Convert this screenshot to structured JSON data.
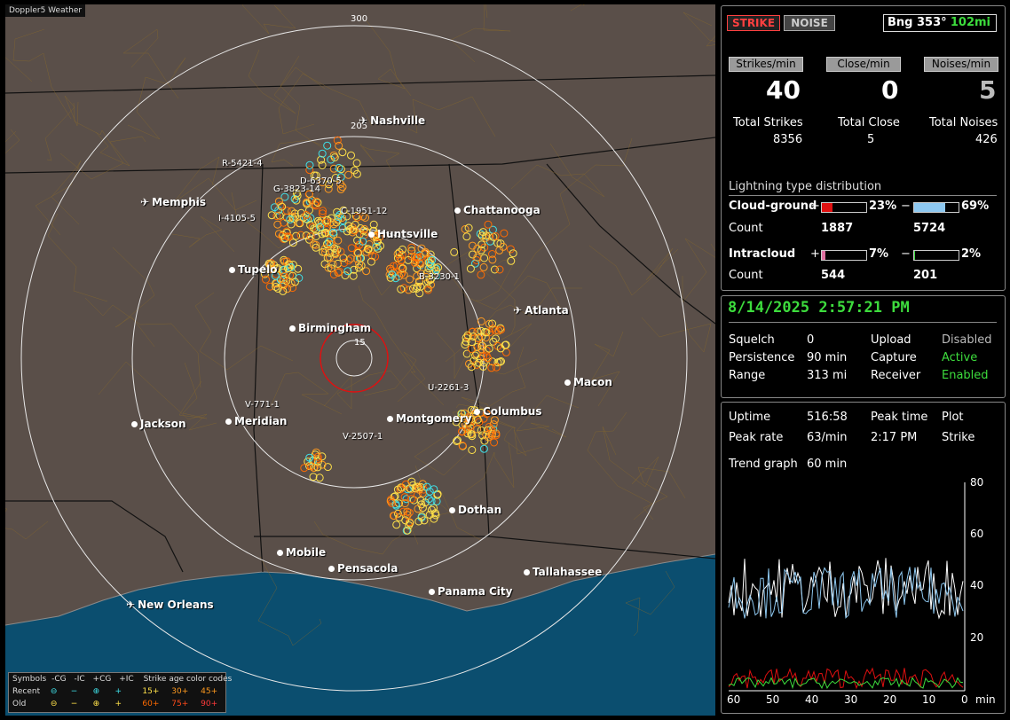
{
  "app_title": "Doppler5 Weather",
  "cities": [
    {
      "name": "Nashville",
      "icon": "plane"
    },
    {
      "name": "Memphis",
      "icon": "plane"
    },
    {
      "name": "Chattanooga",
      "icon": "dot"
    },
    {
      "name": "Huntsville",
      "icon": "dot"
    },
    {
      "name": "Tupelo",
      "icon": "dot"
    },
    {
      "name": "Atlanta",
      "icon": "plane"
    },
    {
      "name": "Birmingham",
      "icon": "dot"
    },
    {
      "name": "Macon",
      "icon": "dot"
    },
    {
      "name": "Jackson",
      "icon": "dot"
    },
    {
      "name": "Meridian",
      "icon": "dot"
    },
    {
      "name": "Montgomery",
      "icon": "dot"
    },
    {
      "name": "Columbus",
      "icon": "dot"
    },
    {
      "name": "Dothan",
      "icon": "dot"
    },
    {
      "name": "Mobile",
      "icon": "dot"
    },
    {
      "name": "Pensacola",
      "icon": "dot"
    },
    {
      "name": "Tallahassee",
      "icon": "dot"
    },
    {
      "name": "Panama City",
      "icon": "dot"
    },
    {
      "name": "New Orleans",
      "icon": "plane"
    }
  ],
  "cells": [
    "R-5421-4",
    "D-6370-5",
    "G-3823-14",
    "I-4105-5",
    "C-1951-12",
    "B-3230-1",
    "U-2261-3",
    "V-771-1",
    "V-2507-1"
  ],
  "range_rings": [
    "300",
    "205",
    "15"
  ],
  "legend": {
    "header": [
      "Symbols",
      "-CG",
      "-IC",
      "+CG",
      "+IC",
      "Strike age color codes"
    ],
    "recent_label": "Recent",
    "old_label": "Old",
    "recent_ages": [
      "15+",
      "30+",
      "45+"
    ],
    "old_ages": [
      "60+",
      "75+",
      "90+"
    ]
  },
  "stats": {
    "strike_btn": "STRIKE",
    "noise_btn": "NOISE",
    "bearing_label": "Bng 353°",
    "bearing_distance": "102mi",
    "strikes_per_min_label": "Strikes/min",
    "close_per_min_label": "Close/min",
    "noises_per_min_label": "Noises/min",
    "strikes_per_min": "40",
    "close_per_min": "0",
    "noises_per_min": "5",
    "total_strikes_label": "Total Strikes",
    "total_close_label": "Total Close",
    "total_noises_label": "Total Noises",
    "total_strikes": "8356",
    "total_close": "5",
    "total_noises": "426",
    "distribution_title": "Lightning type distribution",
    "cloud_ground_label": "Cloud-ground",
    "intracloud_label": "Intracloud",
    "count_label": "Count",
    "plus": "+",
    "minus": "−",
    "cg_pos_pct": "23%",
    "cg_neg_pct": "69%",
    "cg_pos_count": "1887",
    "cg_neg_count": "5724",
    "ic_pos_pct": "7%",
    "ic_neg_pct": "2%",
    "ic_pos_count": "544",
    "ic_neg_count": "201",
    "cg_pos_frac": 0.23,
    "cg_neg_frac": 0.69,
    "ic_pos_frac": 0.07,
    "ic_neg_frac": 0.02
  },
  "status": {
    "datetime": "8/14/2025 2:57:21 PM",
    "squelch_label": "Squelch",
    "squelch": "0",
    "persistence_label": "Persistence",
    "persistence": "90 min",
    "range_label": "Range",
    "range": "313 mi",
    "upload_label": "Upload",
    "upload": "Disabled",
    "capture_label": "Capture",
    "capture": "Active",
    "receiver_label": "Receiver",
    "receiver": "Enabled"
  },
  "trend": {
    "uptime_label": "Uptime",
    "uptime": "516:58",
    "peak_time_label": "Peak time",
    "plot_label": "Plot",
    "peak_rate_label": "Peak rate",
    "peak_rate": "63/min",
    "peak_time": "2:17 PM",
    "plot_value": "Strike",
    "trend_graph_label": "Trend graph",
    "trend_graph_value": "60 min",
    "y_ticks": [
      "80",
      "60",
      "40",
      "20"
    ],
    "x_ticks": [
      "60",
      "50",
      "40",
      "30",
      "20",
      "10",
      "0"
    ],
    "x_unit": "min"
  },
  "colors": {
    "map_land": "#5a4f49",
    "water": "#0b4e6f",
    "strike_old": "#ffe14a",
    "strike_mid": "#ff9a1f",
    "strike_recent": "#ff6a00",
    "ic_recent": "#3fe0e8",
    "accent_green": "#3ddc3d",
    "strike_red": "#e01010"
  }
}
